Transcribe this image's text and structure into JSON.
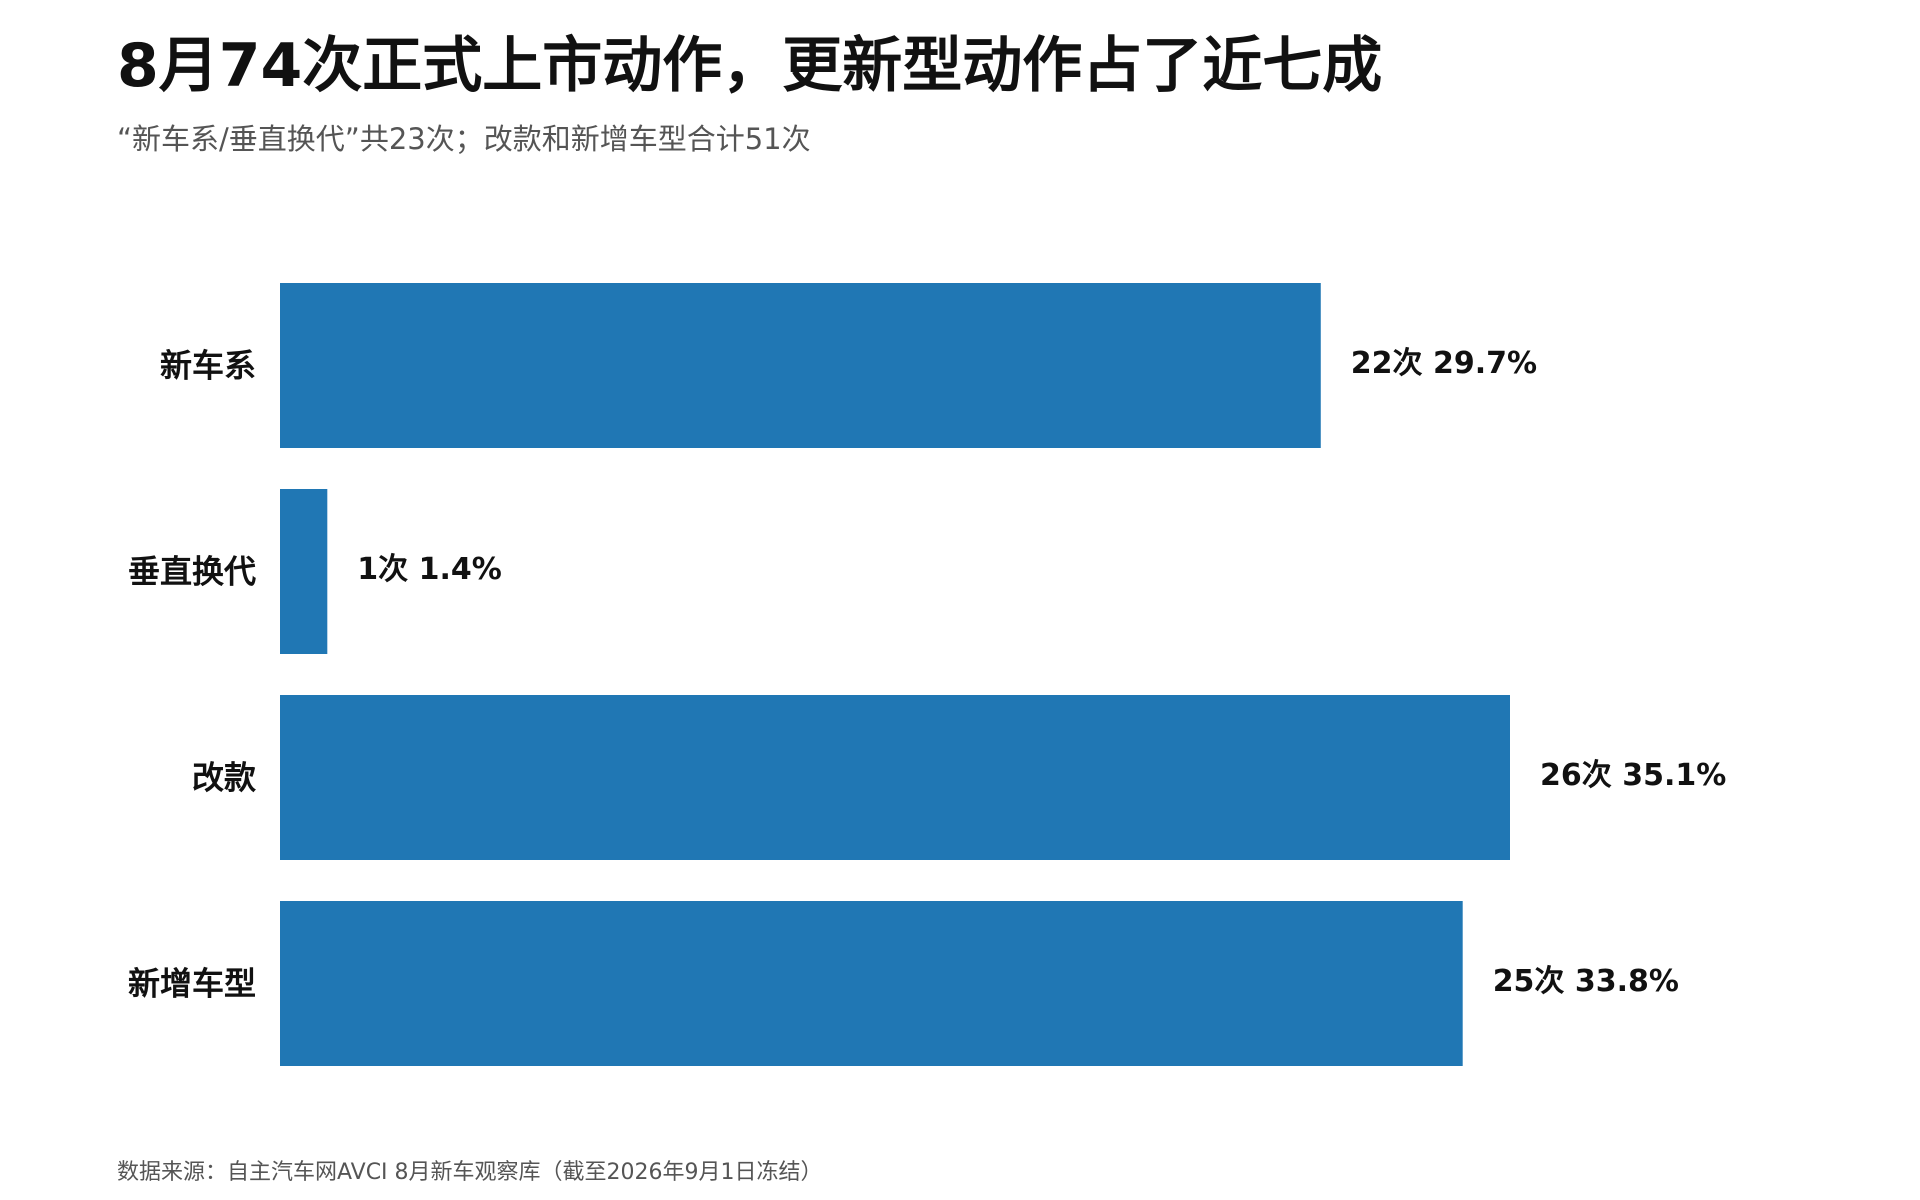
{
  "title": "8月74次正式上市动作，更新型动作占了近七成",
  "subtitle": "“新车系/垂直换代”共23次；改款和新增车型合计51次",
  "footer": "数据来源：自主汽车网AVCI 8月新车观察库（截至2026年9月1日冻结）",
  "colors": {
    "bar": "#2077b4",
    "text": "#111111",
    "muted": "#555555"
  },
  "chart_data": {
    "type": "bar",
    "orientation": "horizontal",
    "categories": [
      "新车系",
      "垂直换代",
      "改款",
      "新增车型"
    ],
    "values": [
      22,
      1,
      26,
      25
    ],
    "data_labels": [
      "22次  29.7%",
      "1次  1.4%",
      "26次  35.1%",
      "25次  33.8%"
    ],
    "xlim": [
      0,
      26
    ],
    "grid": false,
    "legend": "none"
  }
}
